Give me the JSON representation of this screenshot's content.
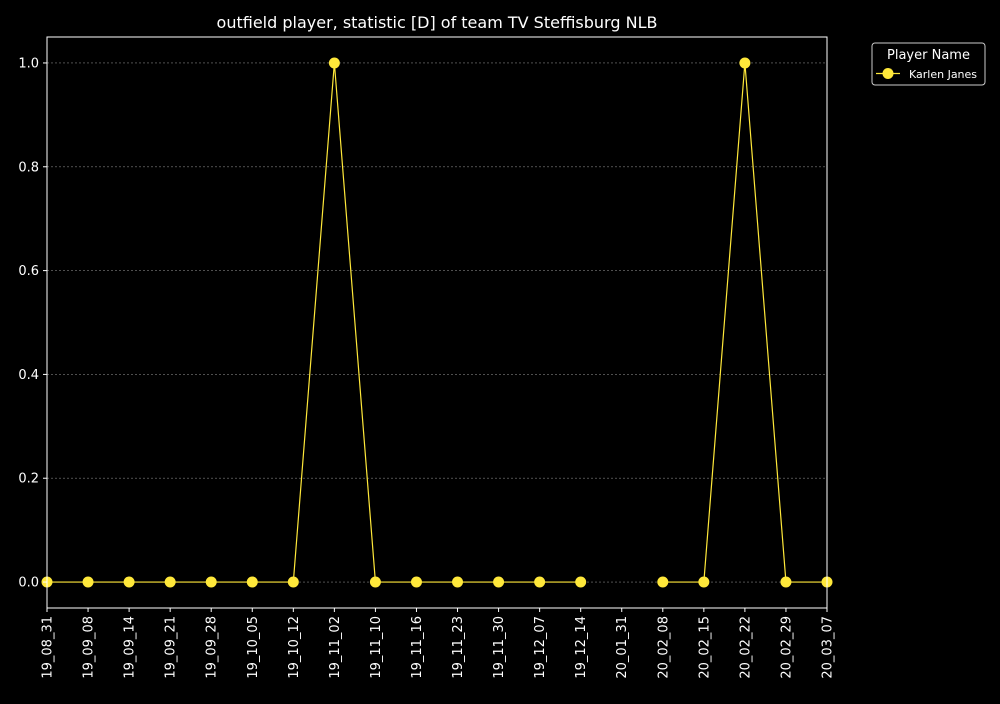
{
  "chart_data": {
    "type": "line",
    "title": "outfield player, statistic [D] of team TV Steffisburg NLB",
    "xlabel": "",
    "ylabel": "",
    "categories": [
      "19_08_31",
      "19_09_08",
      "19_09_14",
      "19_09_21",
      "19_09_28",
      "19_10_05",
      "19_10_12",
      "19_11_02",
      "19_11_10",
      "19_11_16",
      "19_11_23",
      "19_11_30",
      "19_12_07",
      "19_12_14",
      "20_01_31",
      "20_02_08",
      "20_02_15",
      "20_02_22",
      "20_02_29",
      "20_03_07"
    ],
    "series": [
      {
        "name": "Karlen Janes",
        "color": "#FFE83A",
        "values": [
          0,
          0,
          0,
          0,
          0,
          0,
          0,
          1,
          0,
          0,
          0,
          0,
          0,
          0,
          null,
          0,
          0,
          1,
          0,
          0
        ]
      }
    ],
    "ylim": [
      -0.05,
      1.05
    ],
    "yticks": [
      0.0,
      0.2,
      0.4,
      0.6,
      0.8,
      1.0
    ],
    "ytick_labels": [
      "0.0",
      "0.2",
      "0.4",
      "0.6",
      "0.8",
      "1.0"
    ],
    "grid": "horizontal dashed",
    "legend": {
      "title": "Player Name",
      "placement": "outside top-right"
    },
    "colors": {
      "background": "#000000",
      "axes": "#FFFFFF",
      "text": "#FFFFFF",
      "grid": "#7F7F7F"
    }
  }
}
